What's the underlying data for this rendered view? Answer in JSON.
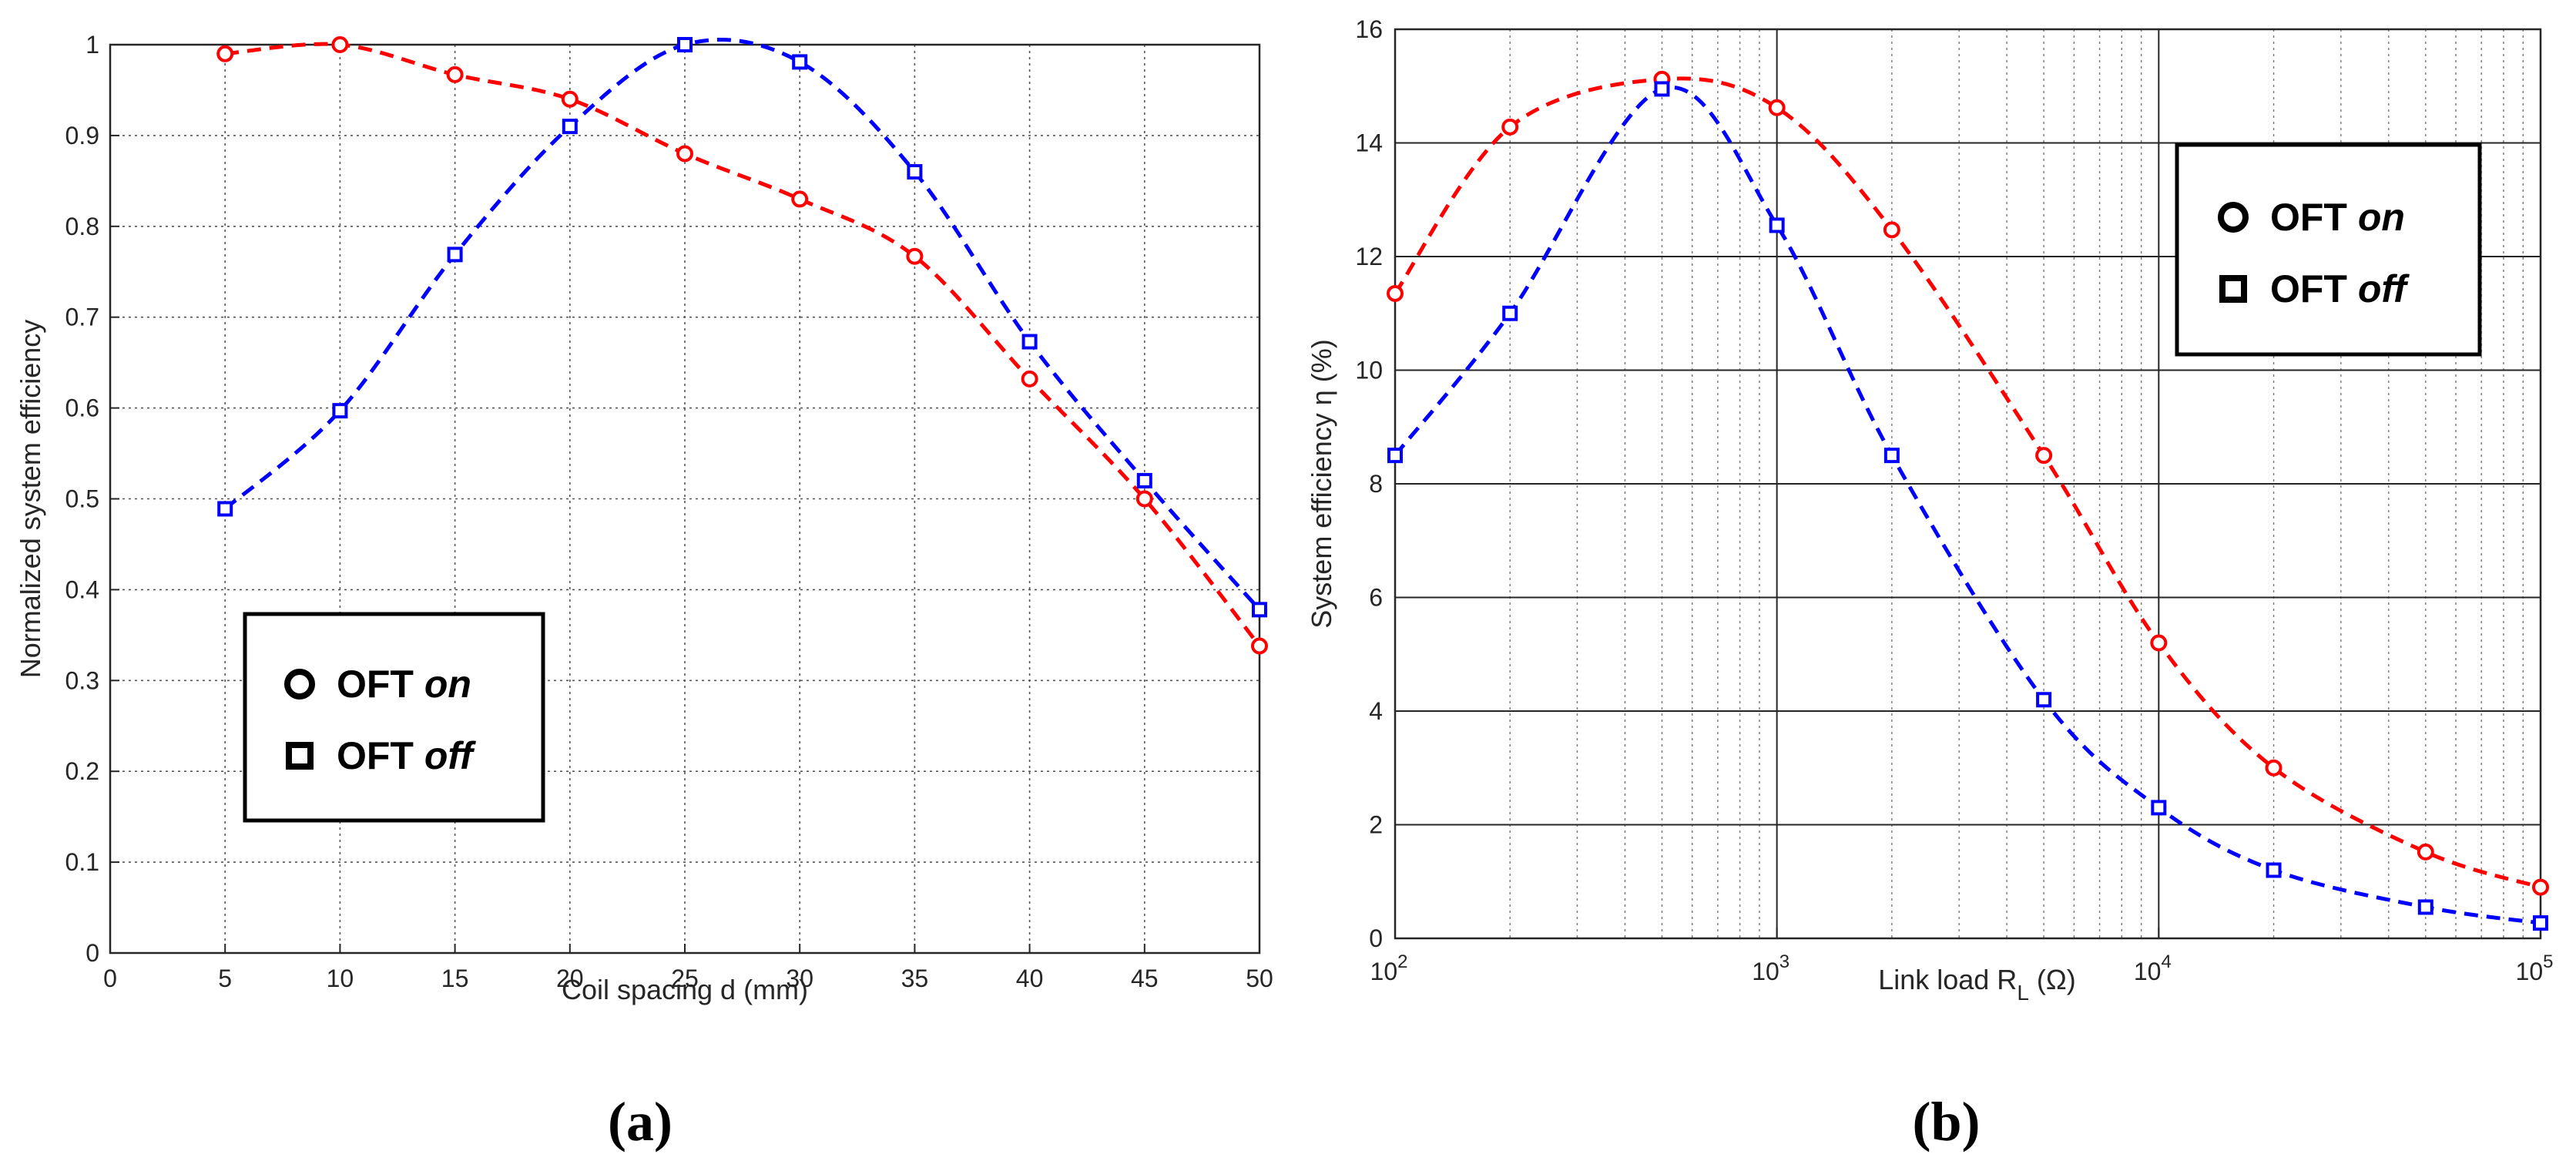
{
  "chart_data": [
    {
      "type": "line",
      "caption": "(a)",
      "xlabel": "Coil spacing d (mm)",
      "ylabel": "Normalized system efficiency",
      "xlim": [
        0,
        50
      ],
      "ylim": [
        0,
        1
      ],
      "xticks": [
        0,
        5,
        10,
        15,
        20,
        25,
        30,
        35,
        40,
        45,
        50
      ],
      "yticks": [
        0,
        0.1,
        0.2,
        0.3,
        0.4,
        0.5,
        0.6,
        0.7,
        0.8,
        0.9,
        1
      ],
      "grid": true,
      "legend_position": "lower-left",
      "series": [
        {
          "name": "OFT on",
          "legend_main": "OFT ",
          "legend_italic": "on",
          "color": "#ff0000",
          "marker": "circle",
          "style": "dashed",
          "x": [
            5,
            10,
            15,
            20,
            25,
            30,
            35,
            40,
            45,
            50
          ],
          "y": [
            0.99,
            1.0,
            0.967,
            0.94,
            0.88,
            0.83,
            0.767,
            0.632,
            0.5,
            0.338
          ]
        },
        {
          "name": "OFT off",
          "legend_main": "OFT ",
          "legend_italic": "off",
          "color": "#0000ff",
          "marker": "square",
          "style": "dashed",
          "x": [
            5,
            10,
            15,
            20,
            25,
            30,
            35,
            40,
            45,
            50
          ],
          "y": [
            0.489,
            0.597,
            0.769,
            0.91,
            1.0,
            0.981,
            0.86,
            0.673,
            0.52,
            0.378
          ]
        }
      ]
    },
    {
      "type": "line",
      "caption": "(b)",
      "xlabel_main": "Link load R",
      "xlabel_sub": "L",
      "xlabel_tail": " (Ω)",
      "ylabel": "System efficiency  η (%)",
      "xscale": "log",
      "xlim": [
        100,
        100000
      ],
      "ylim": [
        0,
        16
      ],
      "xtick_base": "10",
      "xtick_exponents": [
        "2",
        "3",
        "4",
        "5"
      ],
      "yticks": [
        0,
        2,
        4,
        6,
        8,
        10,
        12,
        14,
        16
      ],
      "grid": true,
      "legend_position": "top-right",
      "series": [
        {
          "name": "OFT on",
          "legend_main": "OFT ",
          "legend_italic": "on",
          "color": "#ff0000",
          "marker": "circle",
          "style": "dashed",
          "x": [
            100,
            200,
            500,
            1000,
            2000,
            5000,
            10000,
            20000,
            50000,
            100000
          ],
          "y": [
            11.35,
            14.28,
            15.12,
            14.62,
            12.47,
            8.5,
            5.2,
            3.0,
            1.52,
            0.9
          ]
        },
        {
          "name": "OFT off",
          "legend_main": "OFT ",
          "legend_italic": "off",
          "color": "#0000ff",
          "marker": "square",
          "style": "dashed",
          "x": [
            100,
            200,
            500,
            1000,
            2000,
            5000,
            10000,
            20000,
            50000,
            100000
          ],
          "y": [
            8.5,
            11.0,
            14.95,
            12.55,
            8.5,
            4.2,
            2.3,
            1.2,
            0.55,
            0.27
          ]
        }
      ]
    }
  ]
}
